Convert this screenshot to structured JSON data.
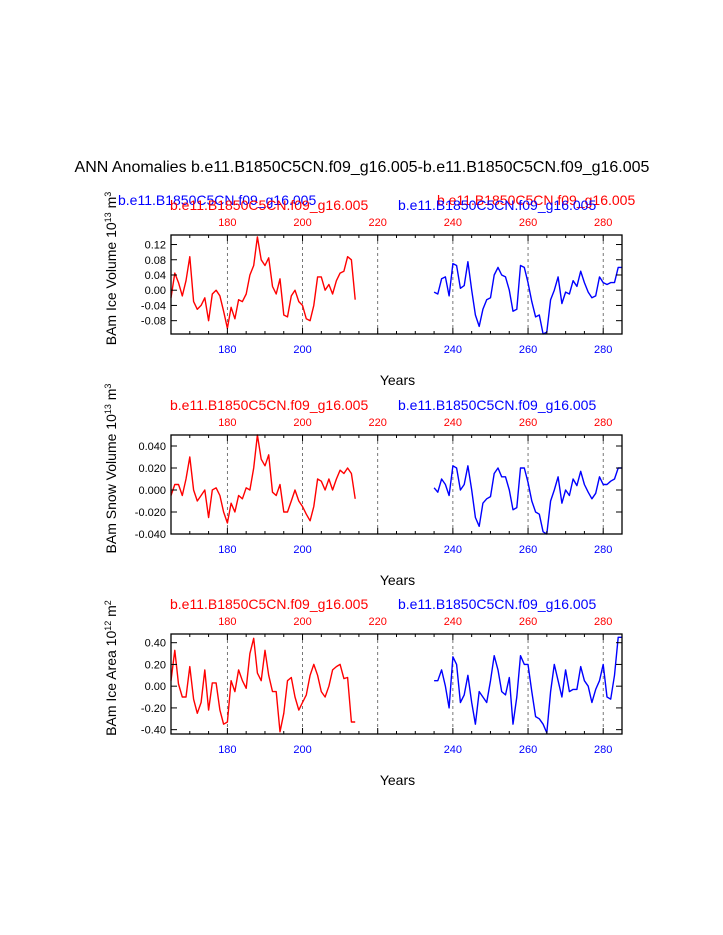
{
  "figure": {
    "title": "ANN Anomalies b.e11.B1850C5CN.f09_g16.005-b.e11.B1850C5CN.f09_g16.005",
    "extra_labels": {
      "blue_offset": "b.e11.B1850C5CN.f09_g16.005",
      "red_offset": "b.e11.B1850C5CN.f09_g16.005"
    }
  },
  "colors": {
    "red": "#ff0000",
    "blue": "#0000ff",
    "axis": "#000000"
  },
  "chart_data": [
    {
      "type": "line",
      "ylabel": "BAm Ice Volume",
      "yunit_base": "10",
      "yunit_exp": "13",
      "yunit_main": "m",
      "yunit_main_exp": "3",
      "xlabel": "Years",
      "xlim": [
        165,
        285
      ],
      "ylim": [
        -0.115,
        0.145
      ],
      "yticks": [
        0.12,
        0.08,
        0.04,
        0.0,
        -0.04,
        -0.08
      ],
      "ytick_labels": [
        "0.12",
        "0.08",
        "0.04",
        "0.00",
        "-0.04",
        "-0.08"
      ],
      "gridlines_x": [
        180,
        200,
        220,
        240,
        260,
        280
      ],
      "bottom_ticks": [
        180,
        200,
        220,
        240,
        260,
        280
      ],
      "bottom_tick_labels": [
        "180",
        "200",
        "",
        "240",
        "260",
        "280"
      ],
      "top_ticks": [
        180,
        200,
        220,
        240,
        260,
        280
      ],
      "top_tick_labels": [
        "180",
        "200",
        "220",
        "240",
        "260",
        "280"
      ],
      "top_left_label": "b.e11.B1850C5CN.f09_g16.005",
      "top_right_label": "b.e11.B1850C5CN.f09_g16.005",
      "series": [
        {
          "color": "red",
          "x": [
            165,
            166,
            167,
            168,
            169,
            170,
            171,
            172,
            173,
            174,
            175,
            176,
            177,
            178,
            179,
            180,
            181,
            182,
            183,
            184,
            185,
            186,
            187,
            188,
            189,
            190,
            191,
            192,
            193,
            194,
            195,
            196,
            197,
            198,
            199,
            200,
            201,
            202,
            203,
            204,
            205,
            206,
            207,
            208,
            209,
            210,
            211,
            212,
            213,
            214
          ],
          "values": [
            -0.02,
            0.045,
            0.02,
            -0.015,
            0.025,
            0.088,
            -0.03,
            -0.05,
            -0.04,
            -0.02,
            -0.08,
            -0.01,
            0.0,
            -0.015,
            -0.055,
            -0.1,
            -0.045,
            -0.075,
            -0.025,
            -0.03,
            -0.01,
            0.04,
            0.065,
            0.14,
            0.08,
            0.065,
            0.085,
            0.01,
            -0.01,
            0.03,
            -0.065,
            -0.07,
            -0.015,
            0.0,
            -0.03,
            -0.04,
            -0.075,
            -0.08,
            -0.04,
            0.035,
            0.035,
            0.0,
            0.015,
            -0.01,
            0.025,
            0.045,
            0.05,
            0.088,
            0.08,
            -0.025
          ]
        },
        {
          "color": "blue",
          "x": [
            235,
            236,
            237,
            238,
            239,
            240,
            241,
            242,
            243,
            244,
            245,
            246,
            247,
            248,
            249,
            250,
            251,
            252,
            253,
            254,
            255,
            256,
            257,
            258,
            259,
            260,
            261,
            262,
            263,
            264,
            265,
            266,
            267,
            268,
            269,
            270,
            271,
            272,
            273,
            274,
            275,
            276,
            277,
            278,
            279,
            280,
            281,
            282,
            283,
            284,
            285
          ],
          "values": [
            -0.005,
            -0.01,
            0.03,
            0.035,
            -0.015,
            0.07,
            0.065,
            0.005,
            0.012,
            0.075,
            0.0,
            -0.065,
            -0.095,
            -0.05,
            -0.025,
            -0.02,
            0.04,
            0.06,
            0.04,
            0.035,
            0.0,
            -0.055,
            -0.05,
            0.065,
            0.06,
            0.02,
            -0.03,
            -0.07,
            -0.065,
            -0.115,
            -0.11,
            -0.025,
            0.0,
            0.035,
            -0.035,
            -0.005,
            -0.01,
            0.025,
            0.01,
            0.05,
            0.02,
            -0.005,
            -0.02,
            -0.015,
            0.035,
            0.02,
            0.015,
            0.02,
            0.02,
            0.06,
            0.06
          ]
        }
      ]
    },
    {
      "type": "line",
      "ylabel": "BAm Snow Volume",
      "yunit_base": "10",
      "yunit_exp": "13",
      "yunit_main": "m",
      "yunit_main_exp": "3",
      "xlabel": "Years",
      "xlim": [
        165,
        285
      ],
      "ylim": [
        -0.04,
        0.05
      ],
      "yticks": [
        0.04,
        0.02,
        0.0,
        -0.02,
        -0.04
      ],
      "ytick_labels": [
        "0.040",
        "0.020",
        "0.000",
        "-0.020",
        "-0.040"
      ],
      "gridlines_x": [
        180,
        200,
        220,
        240,
        260,
        280
      ],
      "bottom_ticks": [
        180,
        200,
        220,
        240,
        260,
        280
      ],
      "bottom_tick_labels": [
        "180",
        "200",
        "",
        "240",
        "260",
        "280"
      ],
      "top_ticks": [
        180,
        200,
        220,
        240,
        260,
        280
      ],
      "top_tick_labels": [
        "180",
        "200",
        "220",
        "240",
        "260",
        "280"
      ],
      "top_left_label": "b.e11.B1850C5CN.f09_g16.005",
      "top_right_label": "b.e11.B1850C5CN.f09_g16.005",
      "series": [
        {
          "color": "red",
          "x": [
            165,
            166,
            167,
            168,
            169,
            170,
            171,
            172,
            173,
            174,
            175,
            176,
            177,
            178,
            179,
            180,
            181,
            182,
            183,
            184,
            185,
            186,
            187,
            188,
            189,
            190,
            191,
            192,
            193,
            194,
            195,
            196,
            197,
            198,
            199,
            200,
            201,
            202,
            203,
            204,
            205,
            206,
            207,
            208,
            209,
            210,
            211,
            212,
            213,
            214
          ],
          "values": [
            -0.005,
            0.005,
            0.005,
            -0.005,
            0.01,
            0.03,
            0.0,
            -0.01,
            -0.005,
            0.0,
            -0.025,
            0.0,
            0.002,
            -0.005,
            -0.02,
            -0.03,
            -0.012,
            -0.02,
            -0.005,
            -0.008,
            0.002,
            0.0,
            0.02,
            0.05,
            0.028,
            0.022,
            0.032,
            -0.002,
            -0.005,
            0.005,
            -0.02,
            -0.02,
            -0.01,
            0.0,
            -0.01,
            -0.015,
            -0.022,
            -0.028,
            -0.015,
            0.01,
            0.008,
            0.0,
            0.01,
            0.0,
            0.01,
            0.018,
            0.015,
            0.02,
            0.015,
            -0.008
          ]
        },
        {
          "color": "blue",
          "x": [
            235,
            236,
            237,
            238,
            239,
            240,
            241,
            242,
            243,
            244,
            245,
            246,
            247,
            248,
            249,
            250,
            251,
            252,
            253,
            254,
            255,
            256,
            257,
            258,
            259,
            260,
            261,
            262,
            263,
            264,
            265,
            266,
            267,
            268,
            269,
            270,
            271,
            272,
            273,
            274,
            275,
            276,
            277,
            278,
            279,
            280,
            281,
            282,
            283,
            284,
            285
          ],
          "values": [
            0.002,
            -0.002,
            0.01,
            0.005,
            -0.005,
            0.022,
            0.02,
            0.0,
            0.005,
            0.022,
            0.0,
            -0.025,
            -0.033,
            -0.012,
            -0.008,
            -0.006,
            0.015,
            0.02,
            0.012,
            0.012,
            0.0,
            -0.018,
            -0.016,
            0.02,
            0.02,
            0.007,
            -0.01,
            -0.02,
            -0.022,
            -0.038,
            -0.04,
            -0.01,
            0.0,
            0.012,
            -0.012,
            0.0,
            -0.005,
            0.01,
            0.004,
            0.017,
            0.005,
            -0.002,
            -0.008,
            -0.003,
            0.012,
            0.005,
            0.005,
            0.008,
            0.01,
            0.02,
            0.02
          ]
        }
      ]
    },
    {
      "type": "line",
      "ylabel": "BAm Ice Area",
      "yunit_base": "10",
      "yunit_exp": "12",
      "yunit_main": "m",
      "yunit_main_exp": "2",
      "xlabel": "Years",
      "xlim": [
        165,
        285
      ],
      "ylim": [
        -0.44,
        0.48
      ],
      "yticks": [
        0.4,
        0.2,
        0.0,
        -0.2,
        -0.4
      ],
      "ytick_labels": [
        "0.40",
        "0.20",
        "0.00",
        "-0.20",
        "-0.40"
      ],
      "gridlines_x": [
        180,
        200,
        220,
        240,
        260,
        280
      ],
      "bottom_ticks": [
        180,
        200,
        220,
        240,
        260,
        280
      ],
      "bottom_tick_labels": [
        "180",
        "200",
        "",
        "240",
        "260",
        "280"
      ],
      "top_ticks": [
        180,
        200,
        220,
        240,
        260,
        280
      ],
      "top_tick_labels": [
        "180",
        "200",
        "220",
        "240",
        "260",
        "280"
      ],
      "top_left_label": "b.e11.B1850C5CN.f09_g16.005",
      "top_right_label": "b.e11.B1850C5CN.f09_g16.005",
      "series": [
        {
          "color": "red",
          "x": [
            165,
            166,
            167,
            168,
            169,
            170,
            171,
            172,
            173,
            174,
            175,
            176,
            177,
            178,
            179,
            180,
            181,
            182,
            183,
            184,
            185,
            186,
            187,
            188,
            189,
            190,
            191,
            192,
            193,
            194,
            195,
            196,
            197,
            198,
            199,
            200,
            201,
            202,
            203,
            204,
            205,
            206,
            207,
            208,
            209,
            210,
            211,
            212,
            213,
            214
          ],
          "values": [
            0.05,
            0.33,
            0.02,
            -0.1,
            -0.1,
            0.18,
            -0.12,
            -0.25,
            -0.15,
            0.15,
            -0.22,
            0.03,
            0.03,
            -0.22,
            -0.35,
            -0.33,
            0.05,
            -0.05,
            0.15,
            0.05,
            -0.02,
            0.3,
            0.44,
            0.12,
            0.05,
            0.33,
            0.1,
            -0.05,
            -0.05,
            -0.42,
            -0.25,
            0.05,
            0.08,
            -0.1,
            -0.22,
            -0.15,
            -0.08,
            0.1,
            0.2,
            0.1,
            -0.05,
            -0.1,
            0.0,
            0.15,
            0.18,
            0.2,
            0.07,
            0.08,
            -0.33,
            -0.33
          ]
        },
        {
          "color": "blue",
          "x": [
            235,
            236,
            237,
            238,
            239,
            240,
            241,
            242,
            243,
            244,
            245,
            246,
            247,
            248,
            249,
            250,
            251,
            252,
            253,
            254,
            255,
            256,
            257,
            258,
            259,
            260,
            261,
            262,
            263,
            264,
            265,
            266,
            267,
            268,
            269,
            270,
            271,
            272,
            273,
            274,
            275,
            276,
            277,
            278,
            279,
            280,
            281,
            282,
            283,
            284,
            285
          ],
          "values": [
            0.05,
            0.05,
            0.15,
            0.0,
            -0.2,
            0.27,
            0.2,
            -0.15,
            -0.08,
            0.1,
            -0.15,
            -0.35,
            -0.05,
            -0.1,
            -0.15,
            0.05,
            0.28,
            0.15,
            -0.05,
            -0.08,
            0.08,
            -0.35,
            -0.1,
            0.28,
            0.2,
            0.2,
            -0.05,
            -0.28,
            -0.3,
            -0.35,
            -0.43,
            -0.05,
            0.2,
            0.05,
            -0.1,
            0.15,
            -0.05,
            -0.03,
            -0.03,
            0.18,
            0.05,
            0.0,
            -0.15,
            -0.03,
            0.05,
            0.2,
            -0.1,
            -0.12,
            0.1,
            0.45,
            0.45
          ]
        }
      ]
    }
  ]
}
